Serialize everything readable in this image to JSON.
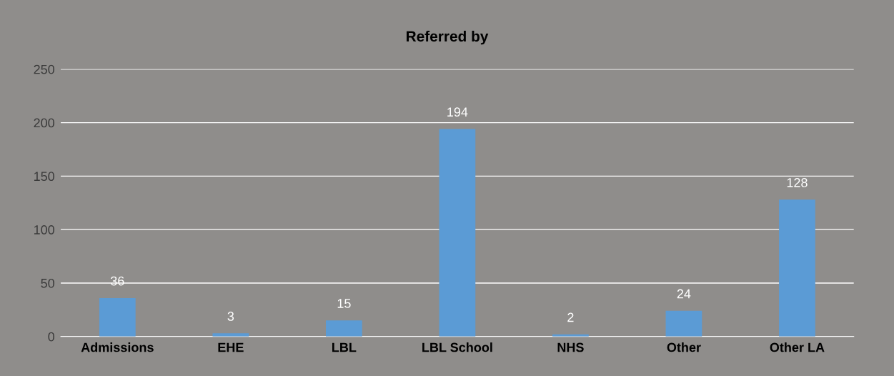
{
  "chart_data": {
    "type": "bar",
    "title": "Referred by",
    "categories": [
      "Admissions",
      "EHE",
      "LBL",
      "LBL School",
      "NHS",
      "Other",
      "Other LA"
    ],
    "values": [
      36,
      3,
      15,
      194,
      2,
      24,
      128
    ],
    "color": "#5b9bd5",
    "ylim": [
      0,
      250
    ],
    "yticks": [
      0,
      50,
      100,
      150,
      200,
      250
    ],
    "grid": "y",
    "data_labels": true
  }
}
